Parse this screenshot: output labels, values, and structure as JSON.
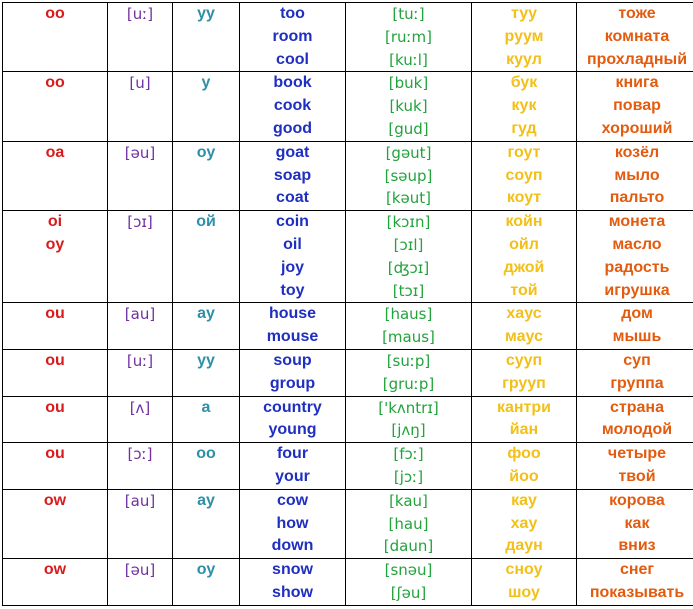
{
  "rows": [
    {
      "letters": [
        "oo"
      ],
      "sound": "[uː]",
      "ru_sound": "уу",
      "words": [
        "too",
        "room",
        "cool"
      ],
      "transcriptions": [
        "[tuː]",
        "[ruːm]",
        "[kuːl]"
      ],
      "ru_readings": [
        "туу",
        "руум",
        "куул"
      ],
      "translations": [
        "тоже",
        "комната",
        "прохладный"
      ]
    },
    {
      "letters": [
        "oo"
      ],
      "sound": "[u]",
      "ru_sound": "у",
      "words": [
        "book",
        "cook",
        "good"
      ],
      "transcriptions": [
        "[buk]",
        "[kuk]",
        "[gud]"
      ],
      "ru_readings": [
        "бук",
        "кук",
        "гуд"
      ],
      "translations": [
        "книга",
        "повар",
        "хороший"
      ]
    },
    {
      "letters": [
        "oa"
      ],
      "sound": "[əu]",
      "ru_sound": "оу",
      "words": [
        "goat",
        "soap",
        "coat"
      ],
      "transcriptions": [
        "[gəut]",
        "[səup]",
        "[kəut]"
      ],
      "ru_readings": [
        "гоут",
        "соуп",
        "коут"
      ],
      "translations": [
        "козёл",
        "мыло",
        "пальто"
      ]
    },
    {
      "letters": [
        "oi",
        "oy"
      ],
      "sound": "[ɔɪ]",
      "ru_sound": "ой",
      "words": [
        "coin",
        "oil",
        "joy",
        "toy"
      ],
      "transcriptions": [
        "[kɔɪn]",
        "[ɔɪl]",
        "[ʤɔɪ]",
        "[tɔɪ]"
      ],
      "ru_readings": [
        "койн",
        "ойл",
        "джой",
        "той"
      ],
      "translations": [
        "монета",
        "масло",
        "радость",
        "игрушка"
      ]
    },
    {
      "letters": [
        "ou"
      ],
      "sound": "[au]",
      "ru_sound": "ау",
      "words": [
        "house",
        "mouse"
      ],
      "transcriptions": [
        "[haus]",
        "[maus]"
      ],
      "ru_readings": [
        "хаус",
        "маус"
      ],
      "translations": [
        "дом",
        "мышь"
      ]
    },
    {
      "letters": [
        "ou"
      ],
      "sound": "[uː]",
      "ru_sound": "уу",
      "words": [
        "soup",
        "group"
      ],
      "transcriptions": [
        "[suːp]",
        "[gruːp]"
      ],
      "ru_readings": [
        "сууп",
        "грууп"
      ],
      "translations": [
        "суп",
        "группа"
      ]
    },
    {
      "letters": [
        "ou"
      ],
      "sound": "[ʌ]",
      "ru_sound": "а",
      "words": [
        "country",
        "young"
      ],
      "transcriptions": [
        "['kʌntrɪ]",
        "[jʌŋ]"
      ],
      "ru_readings": [
        "кантри",
        "йан"
      ],
      "translations": [
        "страна",
        "молодой"
      ]
    },
    {
      "letters": [
        "ou"
      ],
      "sound": "[ɔː]",
      "ru_sound": "оо",
      "words": [
        "four",
        "your"
      ],
      "transcriptions": [
        "[fɔː]",
        "[jɔː]"
      ],
      "ru_readings": [
        "фоо",
        "йоо"
      ],
      "translations": [
        "четыре",
        "твой"
      ]
    },
    {
      "letters": [
        "ow"
      ],
      "sound": "[au]",
      "ru_sound": "ау",
      "words": [
        "cow",
        "how",
        "down"
      ],
      "transcriptions": [
        "[kau]",
        "[hau]",
        "[daun]"
      ],
      "ru_readings": [
        "кау",
        "хау",
        "даун"
      ],
      "translations": [
        "корова",
        "как",
        "вниз"
      ]
    },
    {
      "letters": [
        "ow"
      ],
      "sound": "[əu]",
      "ru_sound": "оу",
      "words": [
        "snow",
        "show"
      ],
      "transcriptions": [
        "[snəu]",
        "[ʃəu]"
      ],
      "ru_readings": [
        "сноу",
        "шоу"
      ],
      "translations": [
        "снег",
        "показывать"
      ]
    }
  ]
}
